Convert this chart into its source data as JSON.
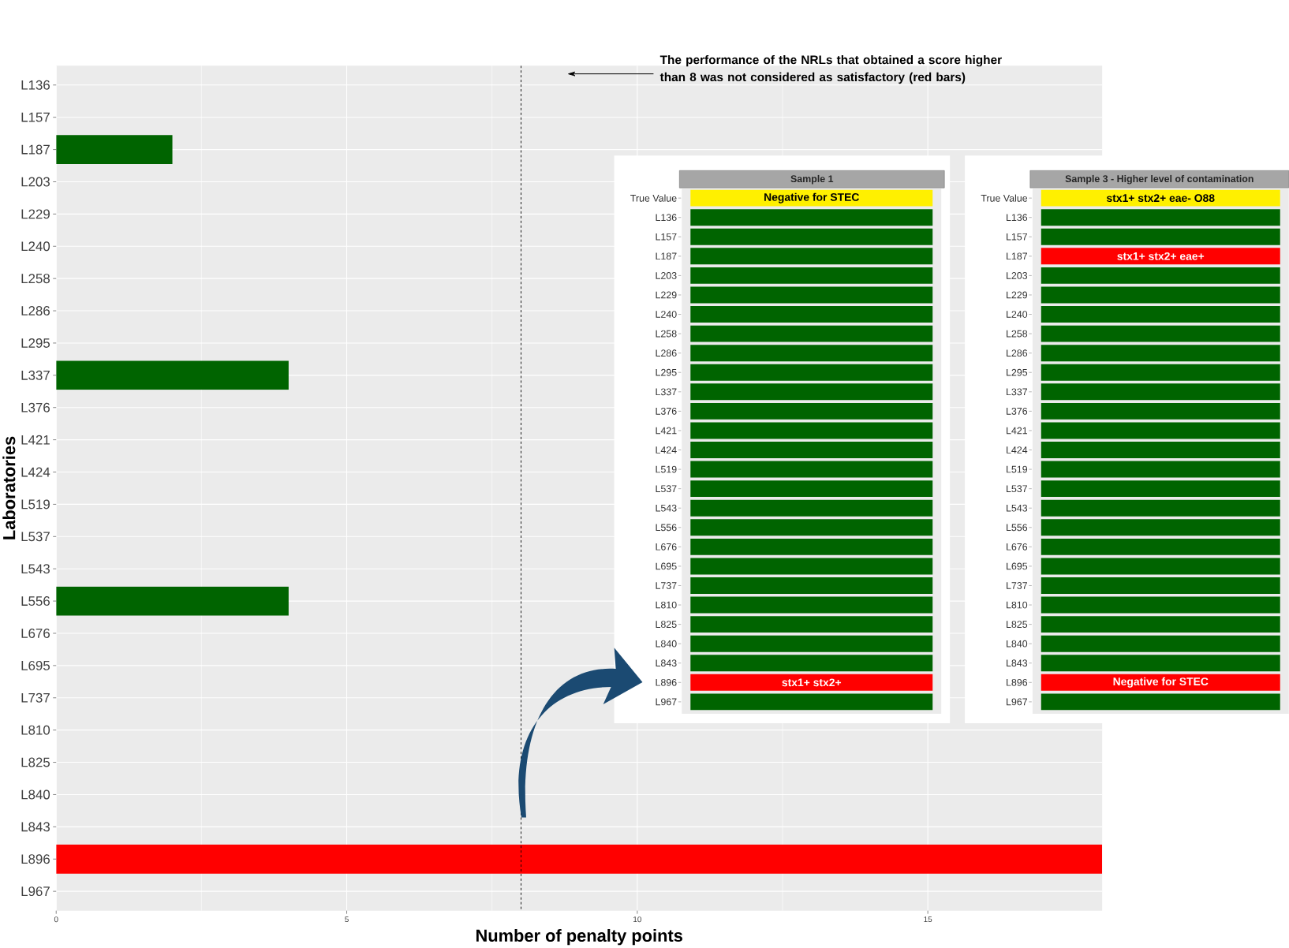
{
  "chart_data": [
    {
      "type": "bar",
      "orientation": "horizontal",
      "xlabel": "Number of penalty points",
      "ylabel": "Laboratories",
      "categories": [
        "L136",
        "L157",
        "L187",
        "L203",
        "L229",
        "L240",
        "L258",
        "L286",
        "L295",
        "L337",
        "L376",
        "L421",
        "L424",
        "L519",
        "L537",
        "L543",
        "L556",
        "L676",
        "L695",
        "L737",
        "L810",
        "L825",
        "L840",
        "L843",
        "L896",
        "L967"
      ],
      "values": [
        0,
        0,
        2,
        0,
        0,
        0,
        0,
        0,
        0,
        4,
        0,
        0,
        0,
        0,
        0,
        0,
        4,
        0,
        0,
        0,
        0,
        0,
        0,
        0,
        18,
        0
      ],
      "colors": [
        "#006400",
        "#006400",
        "#006400",
        "#006400",
        "#006400",
        "#006400",
        "#006400",
        "#006400",
        "#006400",
        "#006400",
        "#006400",
        "#006400",
        "#006400",
        "#006400",
        "#006400",
        "#006400",
        "#006400",
        "#006400",
        "#006400",
        "#006400",
        "#006400",
        "#006400",
        "#006400",
        "#006400",
        "#ff0000",
        "#006400"
      ],
      "xlim": [
        0,
        18
      ],
      "xticks": [
        0,
        5,
        10,
        15
      ],
      "grid": true,
      "ref_lines": [
        {
          "axis": "x",
          "value": 8,
          "line_style": "dashed",
          "color": "#000000"
        }
      ],
      "annotations": [
        "The performance of the NRLs that obtained a score higher than 8 was not considered as satisfactory (red bars)"
      ]
    },
    {
      "type": "other",
      "title": "Sample 1",
      "y_categories": [
        "True Value",
        "L136",
        "L157",
        "L187",
        "L203",
        "L229",
        "L240",
        "L258",
        "L286",
        "L295",
        "L337",
        "L376",
        "L421",
        "L424",
        "L519",
        "L537",
        "L543",
        "L556",
        "L676",
        "L695",
        "L737",
        "L810",
        "L825",
        "L840",
        "L843",
        "L896",
        "L967"
      ],
      "cell_labels": [
        [
          "Negative for STEC"
        ],
        [
          null
        ],
        [
          null
        ],
        [
          null
        ],
        [
          null
        ],
        [
          null
        ],
        [
          null
        ],
        [
          null
        ],
        [
          null
        ],
        [
          null
        ],
        [
          null
        ],
        [
          null
        ],
        [
          null
        ],
        [
          null
        ],
        [
          null
        ],
        [
          null
        ],
        [
          null
        ],
        [
          null
        ],
        [
          null
        ],
        [
          null
        ],
        [
          null
        ],
        [
          null
        ],
        [
          null
        ],
        [
          null
        ],
        [
          null
        ],
        [
          "stx1+ stx2+"
        ],
        [
          null
        ]
      ],
      "colors": [
        "#fff000",
        "#006400",
        "#006400",
        "#006400",
        "#006400",
        "#006400",
        "#006400",
        "#006400",
        "#006400",
        "#006400",
        "#006400",
        "#006400",
        "#006400",
        "#006400",
        "#006400",
        "#006400",
        "#006400",
        "#006400",
        "#006400",
        "#006400",
        "#006400",
        "#006400",
        "#006400",
        "#006400",
        "#006400",
        "#ff0000",
        "#006400"
      ]
    },
    {
      "type": "other",
      "title": "Sample 3 - Higher level of contamination",
      "y_categories": [
        "True Value",
        "L136",
        "L157",
        "L187",
        "L203",
        "L229",
        "L240",
        "L258",
        "L286",
        "L295",
        "L337",
        "L376",
        "L421",
        "L424",
        "L519",
        "L537",
        "L543",
        "L556",
        "L676",
        "L695",
        "L737",
        "L810",
        "L825",
        "L840",
        "L843",
        "L896",
        "L967"
      ],
      "cell_labels": [
        [
          "stx1+ stx2+ eae- O88"
        ],
        [
          null
        ],
        [
          null
        ],
        [
          "stx1+ stx2+ eae+"
        ],
        [
          null
        ],
        [
          null
        ],
        [
          null
        ],
        [
          null
        ],
        [
          null
        ],
        [
          null
        ],
        [
          null
        ],
        [
          null
        ],
        [
          null
        ],
        [
          null
        ],
        [
          null
        ],
        [
          null
        ],
        [
          null
        ],
        [
          null
        ],
        [
          null
        ],
        [
          null
        ],
        [
          null
        ],
        [
          null
        ],
        [
          null
        ],
        [
          null
        ],
        [
          null
        ],
        [
          "Negative for STEC"
        ],
        [
          null
        ]
      ],
      "colors": [
        "#fff000",
        "#006400",
        "#006400",
        "#ff0000",
        "#006400",
        "#006400",
        "#006400",
        "#006400",
        "#006400",
        "#006400",
        "#006400",
        "#006400",
        "#006400",
        "#006400",
        "#006400",
        "#006400",
        "#006400",
        "#006400",
        "#006400",
        "#006400",
        "#006400",
        "#006400",
        "#006400",
        "#006400",
        "#006400",
        "#ff0000",
        "#006400"
      ]
    }
  ]
}
